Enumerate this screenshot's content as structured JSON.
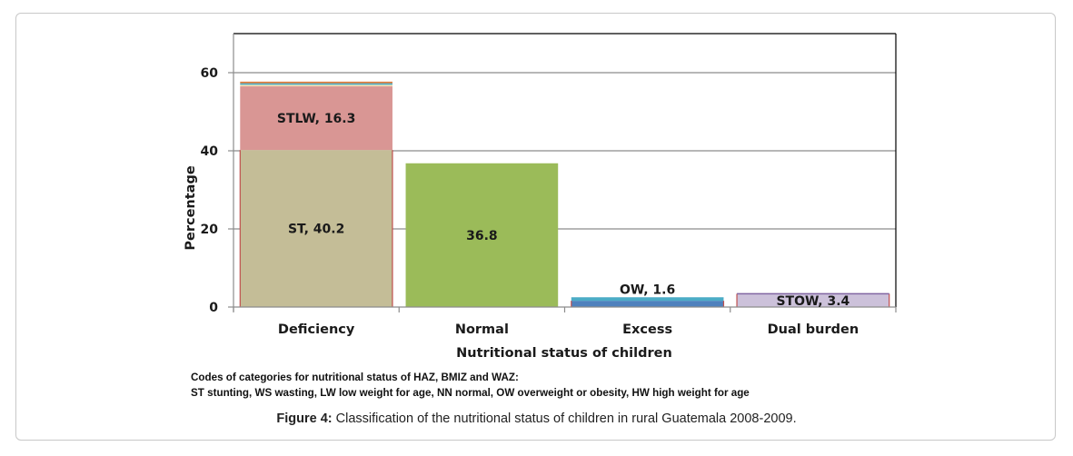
{
  "chart_data": {
    "type": "bar",
    "stacked": true,
    "title": "",
    "xlabel": "Nutritional status of children",
    "ylabel": "Percentage",
    "ylim": [
      0,
      70
    ],
    "yticks": [
      0,
      20,
      40,
      60
    ],
    "grid": true,
    "categories": [
      "Deficiency",
      "Normal",
      "Excess",
      "Dual burden"
    ],
    "bars": [
      {
        "category": "Deficiency",
        "segments": [
          {
            "name": "ST",
            "value": 40.2,
            "label": "ST, 40.2",
            "color": "#c4bd97",
            "border": "#c0504d"
          },
          {
            "name": "STLW",
            "value": 16.3,
            "label": "STLW, 16.3",
            "color": "#d99694"
          },
          {
            "name": "other-1",
            "value": 0.4,
            "label": "",
            "color": "#f2dcb0"
          },
          {
            "name": "other-2",
            "value": 0.4,
            "label": "",
            "color": "#4bacc6"
          },
          {
            "name": "other-3",
            "value": 0.4,
            "label": "",
            "color": "#e07b39"
          }
        ]
      },
      {
        "category": "Normal",
        "segments": [
          {
            "name": "NN",
            "value": 36.8,
            "label": "36.8",
            "color": "#9bbb59"
          }
        ]
      },
      {
        "category": "Excess",
        "segments": [
          {
            "name": "OW",
            "value": 1.6,
            "label": "OW, 1.6",
            "color": "#4f81bd",
            "border": "#c0504d"
          },
          {
            "name": "other",
            "value": 0.9,
            "label": "",
            "color": "#4bacc6"
          }
        ]
      },
      {
        "category": "Dual burden",
        "segments": [
          {
            "name": "STOW",
            "value": 3.4,
            "label": "STOW, 3.4",
            "color": "#ccc1da",
            "border": "#c0504d",
            "topBorder": "#8064a2"
          }
        ]
      }
    ]
  },
  "notes": {
    "line1": "Codes of categories for nutritional status of HAZ, BMIZ and WAZ:",
    "line2": "ST stunting, WS wasting, LW low weight for age, NN normal, OW overweight or obesity, HW high weight for age"
  },
  "caption": {
    "prefix": "Figure 4:",
    "text": " Classification of the nutritional status of children in rural Guatemala 2008-2009."
  }
}
